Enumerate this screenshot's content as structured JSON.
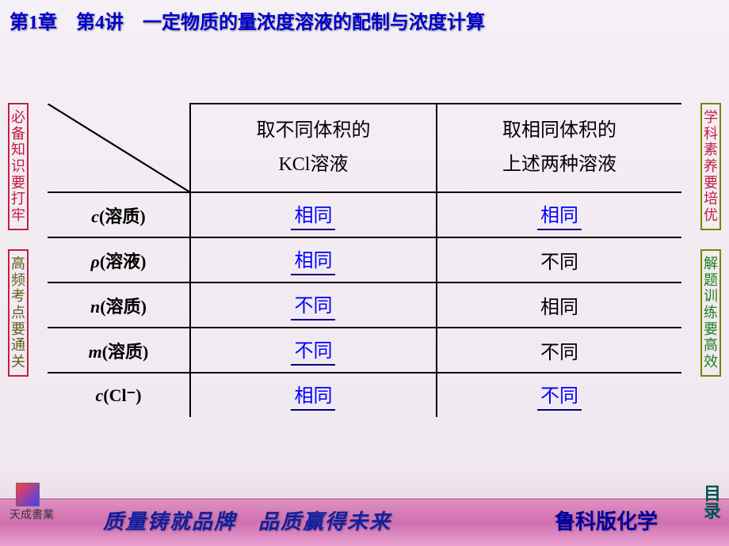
{
  "title": "第1章　第4讲　一定物质的量浓度溶液的配制与浓度计算",
  "sidebars": {
    "left_top": "必备知识要打牢",
    "left_bot": "高频考点要通关",
    "right_top": "学科素养要培优",
    "right_bot": "解题训练要高效"
  },
  "table": {
    "col1_line1": "取不同体积的",
    "col1_line2": "KCl溶液",
    "col2_line1": "取相同体积的",
    "col2_line2": "上述两种溶液",
    "rows": [
      {
        "label_pre": "c",
        "label_cn": "(溶质)",
        "c1": "相同",
        "c1_blue": true,
        "c2": "相同",
        "c2_blue": true
      },
      {
        "label_pre": "ρ",
        "label_cn": "(溶液)",
        "c1": "相同",
        "c1_blue": true,
        "c2": "不同",
        "c2_blue": false
      },
      {
        "label_pre": "n",
        "label_cn": "(溶质)",
        "c1": "不同",
        "c1_blue": true,
        "c2": "相同",
        "c2_blue": false
      },
      {
        "label_pre": "m",
        "label_cn": "(溶质)",
        "c1": "不同",
        "c1_blue": true,
        "c2": "不同",
        "c2_blue": false
      },
      {
        "label_pre": "c",
        "label_cn": "(Cl⁻)",
        "c1": "相同",
        "c1_blue": true,
        "c2": "不同",
        "c2_blue": true
      }
    ]
  },
  "footer": {
    "logo_text": "天成書業",
    "slogan": "质量铸就品牌　品质赢得未来",
    "right": "鲁科版化学",
    "index": "目录"
  }
}
